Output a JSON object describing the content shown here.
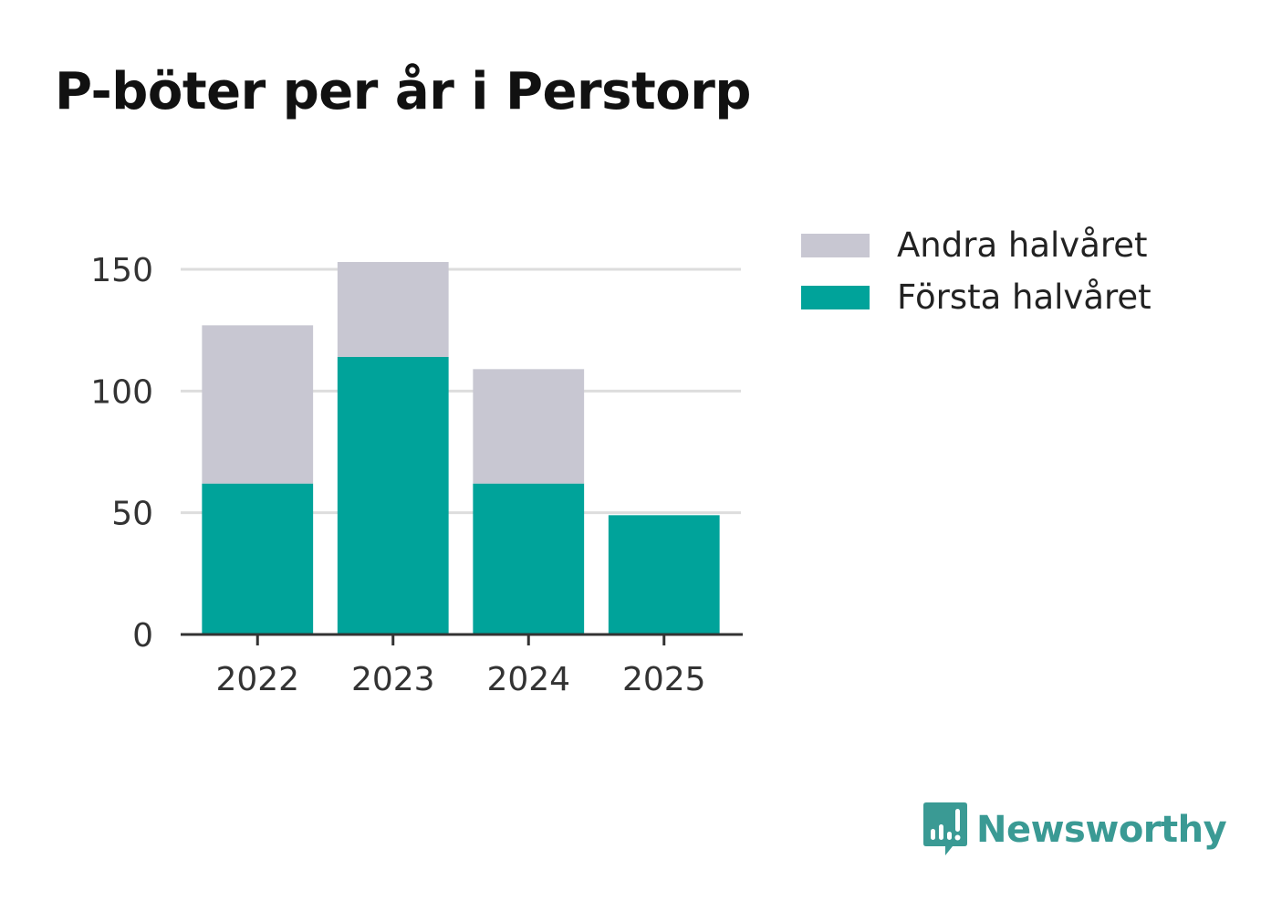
{
  "chart_data": {
    "type": "bar",
    "stacked": true,
    "title": "P-böter per år i Perstorp",
    "categories": [
      "2022",
      "2023",
      "2024",
      "2025"
    ],
    "series": [
      {
        "name": "Första halvåret",
        "color": "#00a39a",
        "values": [
          62,
          114,
          62,
          49
        ]
      },
      {
        "name": "Andra halvåret",
        "color": "#c8c7d2",
        "values": [
          65,
          39,
          47,
          0
        ]
      }
    ],
    "yticks": [
      0,
      50,
      100,
      150
    ],
    "ylim": [
      0,
      165
    ],
    "grid": true,
    "legend": "top-right"
  },
  "legend": {
    "items": [
      {
        "label": "Andra halvåret",
        "color": "#c8c7d2"
      },
      {
        "label": "Första halvåret",
        "color": "#00a39a"
      }
    ]
  },
  "brand": {
    "name": "Newsworthy",
    "color": "#3a9a94",
    "icon": "newsworthy-logo-icon"
  }
}
